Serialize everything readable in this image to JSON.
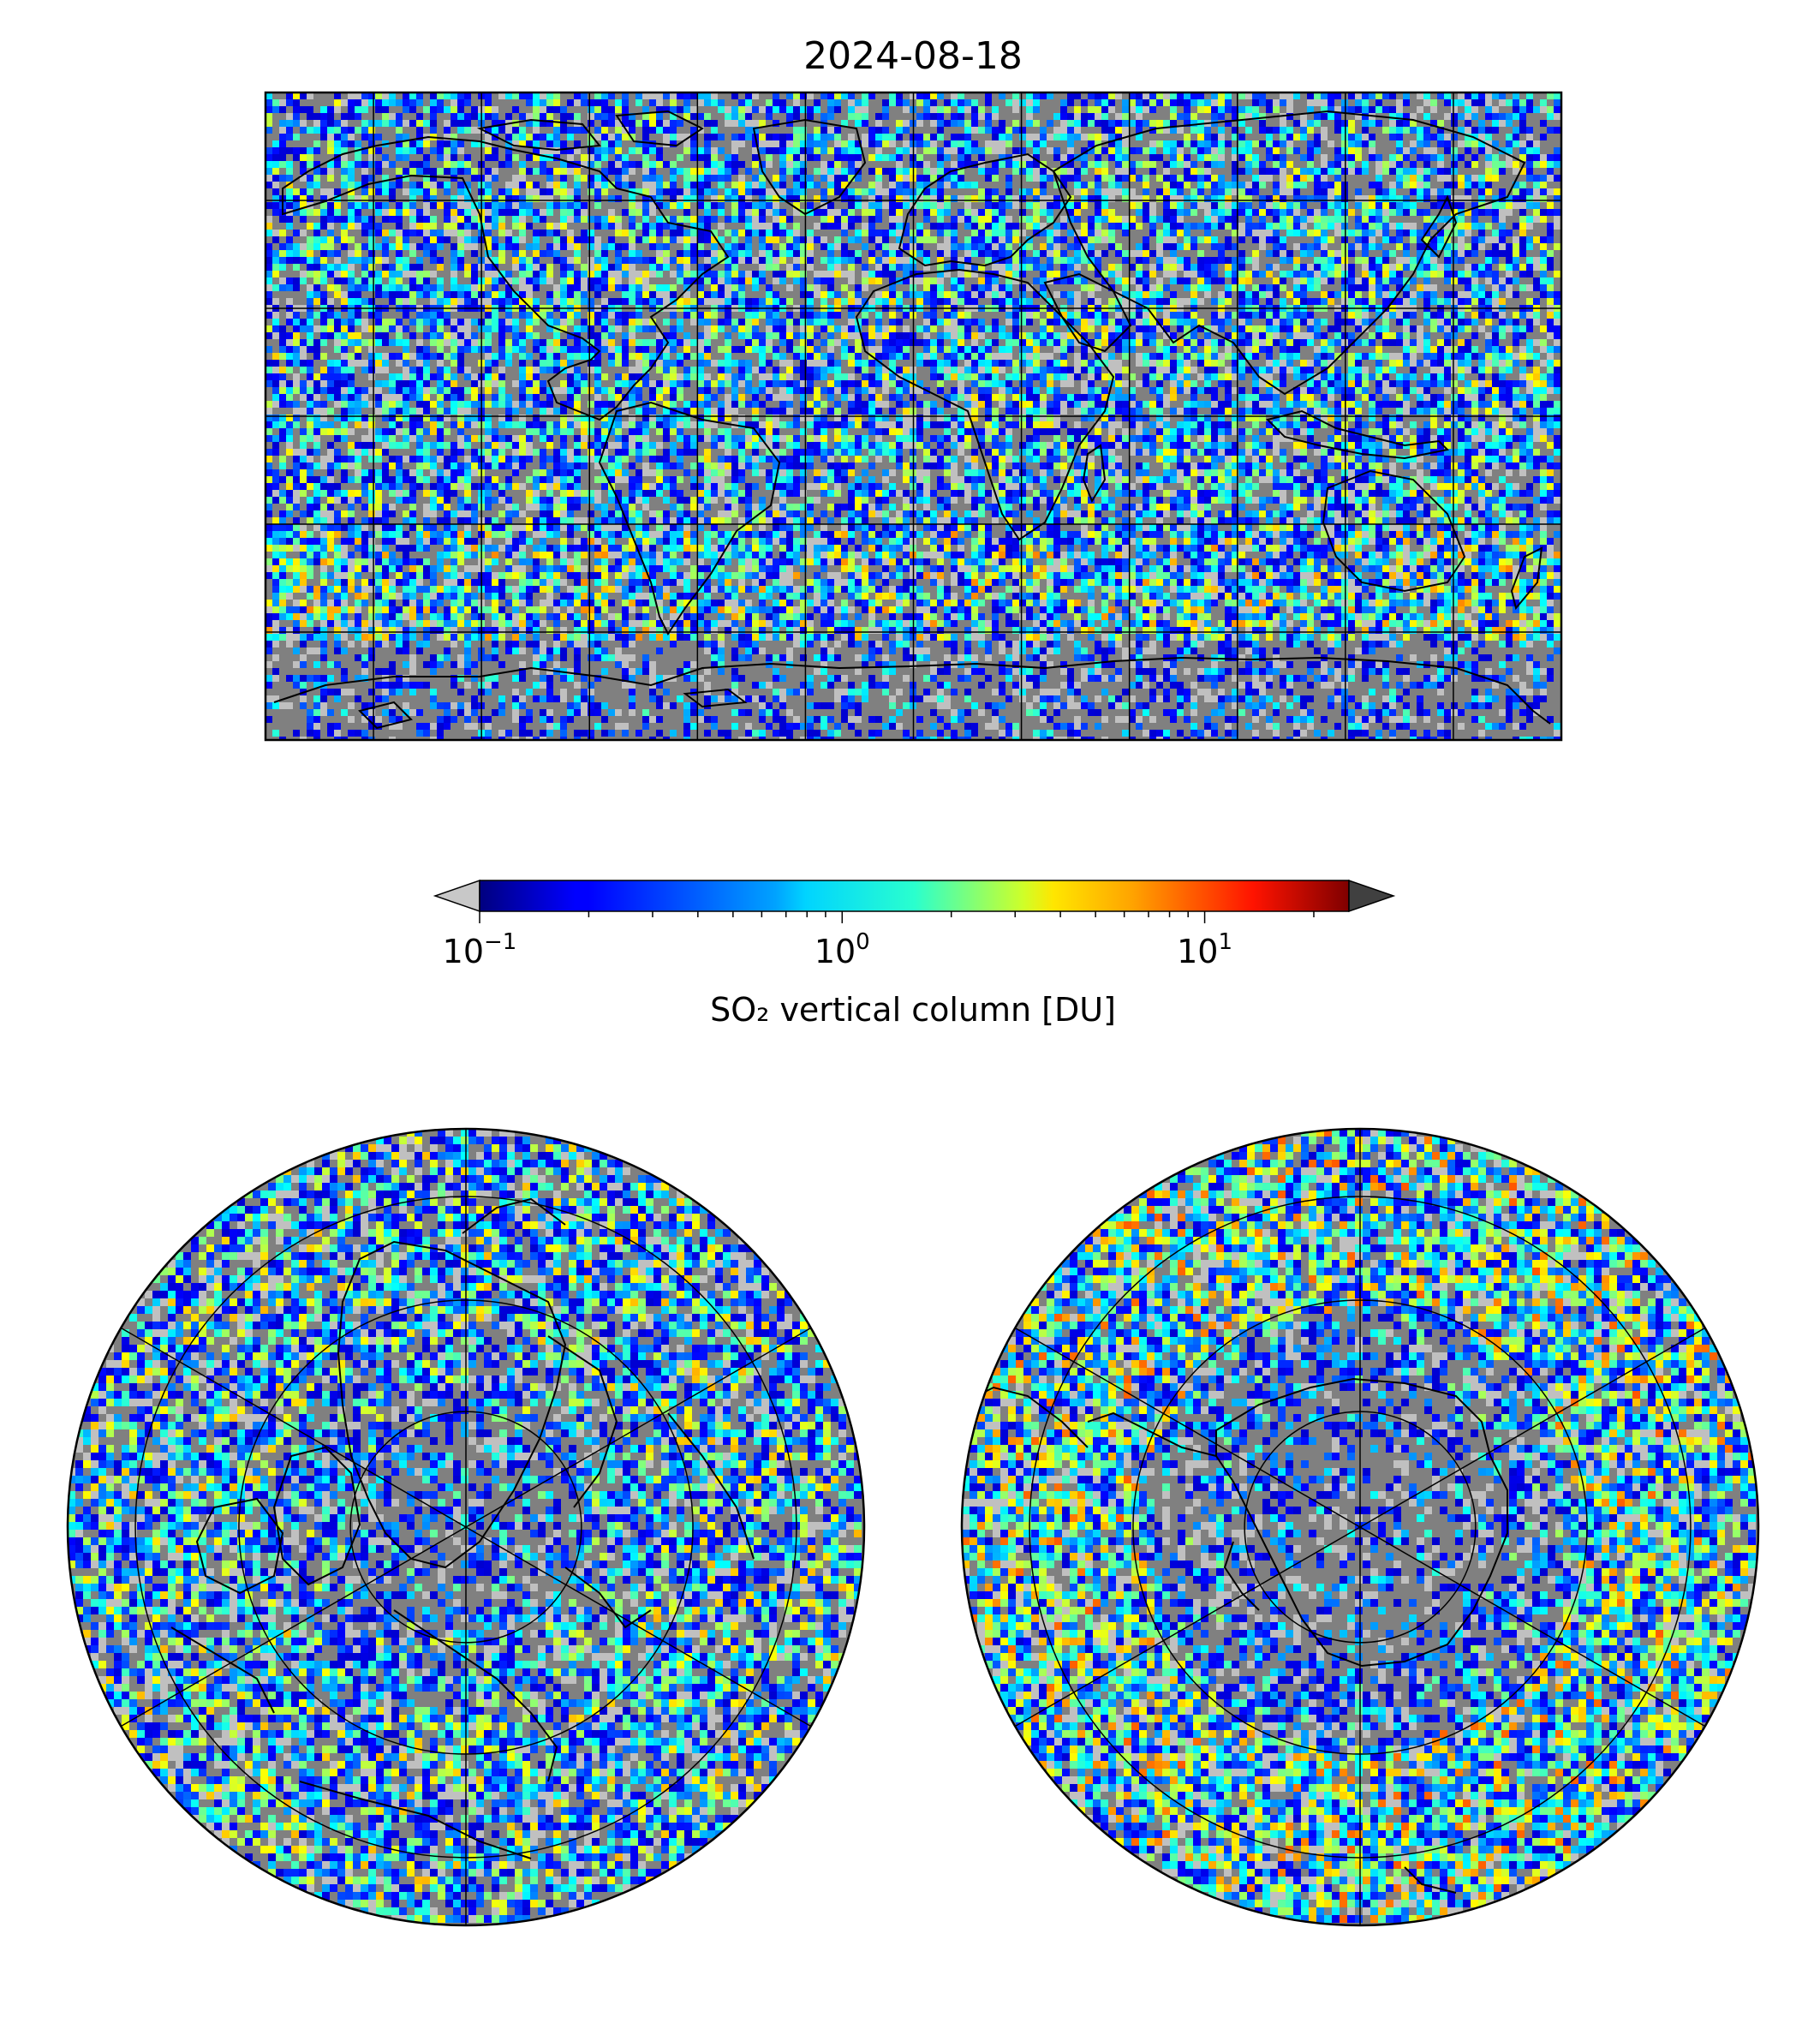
{
  "title": "2024-08-18",
  "colorbar": {
    "label": "SO₂ vertical column [DU]",
    "scale": "log",
    "colormap": "jet",
    "range": [
      0.1,
      25
    ],
    "ticks": [
      {
        "value": 0.1,
        "base": "10",
        "exp": "−1"
      },
      {
        "value": 1,
        "base": "10",
        "exp": "0"
      },
      {
        "value": 10,
        "base": "10",
        "exp": "1"
      }
    ],
    "extend_low_color": "#c8c8c8",
    "extend_high_color": "#404040"
  },
  "colors": {
    "nodata": "#808080",
    "below_min": "#c0c0c0",
    "coast": "#000000",
    "grid": "#000000"
  },
  "maps": [
    {
      "name": "global-map",
      "projection": "plate-carree",
      "lon_range": [
        -180,
        180
      ],
      "lat_range": [
        -90,
        90
      ],
      "gridlines": "every 30 degrees"
    },
    {
      "name": "north-polar-map",
      "projection": "north-polar-stereographic",
      "center": "North Pole",
      "gridlines": "circles every 15 degrees, meridians every 60 degrees"
    },
    {
      "name": "south-polar-map",
      "projection": "south-polar-stereographic",
      "center": "South Pole",
      "gridlines": "circles every 15 degrees, meridians every 60 degrees"
    }
  ]
}
